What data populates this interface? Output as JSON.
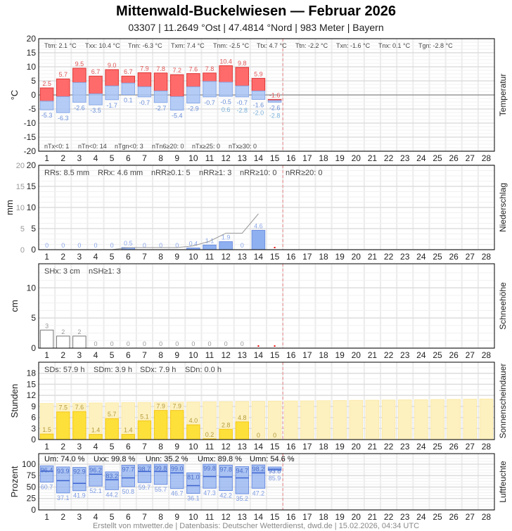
{
  "header": {
    "title": "Mittenwald-Buckelwiesen  —  Februar 2026",
    "subtitle": "03307  |  11.2649 °Ost  |  47.4814 °Nord  |  983 Meter  |  Bayern"
  },
  "footer": "Erstellt von mtwetter.de | Datenbasis: Deutscher Wetterdienst, dwd.de | 15.02.2026, 04:34 UTC",
  "colors": {
    "max": "#ff6b6b",
    "min": "#a8c4f4",
    "precip": "#8fb0f0",
    "sun": "#fde03a",
    "sun_possible": "#fdf1c0",
    "humidity": "#8fb0f0",
    "today_line": "#e88",
    "grid": "#e4e4e4"
  },
  "days": [
    "1",
    "2",
    "3",
    "4",
    "5",
    "6",
    "7",
    "8",
    "9",
    "10",
    "11",
    "12",
    "13",
    "14",
    "15",
    "16",
    "17",
    "18",
    "19",
    "20",
    "21",
    "22",
    "23",
    "24",
    "25",
    "26",
    "27",
    "28"
  ],
  "chart_data": [
    {
      "type": "bar",
      "ylabel": "°C",
      "side_label": "Temperatur",
      "ylim": [
        -20,
        20
      ],
      "yticks": [
        "20",
        "15",
        "10",
        "5",
        "0",
        "-5",
        "-10",
        "-15",
        "-20"
      ],
      "stats_top": [
        "Ttm: 2.1 °C",
        "Txx: 10.4 °C",
        "Tnn: -6.3 °C",
        "Txm: 7.4 °C",
        "Tnm: -2.5 °C",
        "Ttx: 4.7 °C",
        "Ttn: -2.2 °C",
        "Txn: -1.6 °C",
        "Tnx: 0.1 °C",
        "Tgn: -2.8 °C"
      ],
      "stats_bottom": [
        "nTx<0: 1",
        "nTn<0: 14",
        "nTgn<0: 3",
        "nTn6≥20: 0",
        "nTx≥25: 0",
        "nTx≥30: 0"
      ],
      "series": [
        {
          "name": "max",
          "values": [
            2.5,
            5.7,
            9.5,
            6.7,
            9.0,
            6.7,
            7.9,
            7.8,
            7.2,
            7.6,
            7.8,
            10.4,
            9.8,
            5.9,
            -1.6
          ],
          "labels": [
            "2.5",
            "5.7",
            "9.5",
            "6.7",
            "9.0",
            "6.7",
            "7.9",
            "7.8",
            "7.2",
            "7.6",
            "7.8",
            "10.4",
            "9.8",
            "5.9",
            "-1.6"
          ]
        },
        {
          "name": "mean",
          "values": [
            -2.2,
            -0.6,
            4.4,
            0.4,
            3.2,
            4.2,
            2.9,
            1.4,
            -0.6,
            2.9,
            4.8,
            4.5,
            3.2,
            1.4,
            -2.0
          ]
        },
        {
          "name": "min",
          "values": [
            -5.3,
            -6.3,
            -2.6,
            -3.5,
            -1.7,
            0.1,
            -0.7,
            -2.7,
            -5.4,
            -2.9,
            -0.7,
            -0.5,
            -0.7,
            -1.6,
            -2.6
          ],
          "labels": [
            "-5.3",
            "-6.3",
            "-2.6",
            "-3.5",
            "-1.7",
            "0.1",
            "-0.7",
            "-2.7",
            "-5.4",
            "-2.9",
            "-0.7",
            "-0.5",
            "-0.7",
            "-1.6",
            "-2.6"
          ]
        },
        {
          "name": "ground_min",
          "days": [
            12,
            13,
            14,
            15
          ],
          "values": [
            0.6,
            -2.8,
            -2.0,
            -2.8
          ],
          "labels": [
            "0.6",
            "-2.8",
            "-2.0",
            "-2.8"
          ]
        }
      ]
    },
    {
      "type": "bar",
      "ylabel": "mm",
      "side_label": "Niederschlag",
      "ylim": [
        0,
        20
      ],
      "yticks": [
        "20",
        "15",
        "10",
        "5",
        "0"
      ],
      "stats_top": [
        "RRs: 8.5 mm",
        "RRx: 4.6 mm",
        "nRR≥0.1: 5",
        "nRR≥1: 3",
        "nRR≥10: 0",
        "nRR≥20: 0"
      ],
      "values": [
        0,
        0,
        0,
        0,
        0,
        0.5,
        0,
        0,
        0,
        0.4,
        1.1,
        1.9,
        0,
        4.6
      ],
      "labels": [
        "0",
        "0",
        "0",
        "0",
        "0",
        "0.5",
        "0",
        "0",
        "0",
        "0.4",
        "1.1",
        "1.9",
        "0",
        "4.6"
      ],
      "cumulative_line": true,
      "missing_days": [
        15
      ]
    },
    {
      "type": "bar",
      "ylabel": "cm",
      "side_label": "Schneehöhe",
      "ylim": [
        0,
        14
      ],
      "yticks": [
        "10",
        "5",
        "0"
      ],
      "stats_top": [
        "SHx: 3 cm",
        "nSH≥1: 3"
      ],
      "values": [
        3,
        2,
        2,
        0,
        0,
        0,
        0,
        0,
        0,
        0,
        0,
        0,
        0
      ],
      "labels": [
        "3",
        "2",
        "2",
        "0",
        "0",
        "0",
        "0",
        "0",
        "0",
        "0",
        "0",
        "0",
        "0"
      ],
      "missing_days": [
        14,
        15
      ]
    },
    {
      "type": "bar",
      "ylabel": "Stunden",
      "side_label": "Sonnenscheindauer",
      "ylim": [
        0,
        21
      ],
      "yticks": [
        "18",
        "15",
        "12",
        "9",
        "6",
        "3",
        "0"
      ],
      "stats_top": [
        "SDs: 57.9 h",
        "SDm: 3.9 h",
        "SDx: 7.9 h",
        "SDn: 0.0 h"
      ],
      "values": [
        1.5,
        7.5,
        7.6,
        1.4,
        5.7,
        1.4,
        5.1,
        7.9,
        7.9,
        4.0,
        0.2,
        2.8,
        4.8,
        0,
        0
      ],
      "labels": [
        "1.5",
        "7.5",
        "7.6",
        "1.4",
        "5.7",
        "1.4",
        "5.1",
        "7.9",
        "7.9",
        "4.0",
        "0.2",
        "2.8",
        "4.8",
        "0",
        "0"
      ],
      "possible_values": [
        9.8,
        9.84,
        9.88,
        9.93,
        9.97,
        10.02,
        10.06,
        10.1,
        10.15,
        10.19,
        10.24,
        10.28,
        10.33,
        10.37,
        10.42,
        10.46,
        10.5,
        10.55,
        10.59,
        10.64,
        10.68,
        10.72,
        10.77,
        10.81,
        10.86,
        10.9,
        10.95,
        11.0
      ]
    },
    {
      "type": "bar",
      "ylabel": "Prozent",
      "side_label": "Luftfeuchte",
      "ylim": [
        0,
        123
      ],
      "yticks": [
        "100",
        "75",
        "50",
        "25",
        "0"
      ],
      "stats_top": [
        "Um: 74.0 %",
        "Uxx: 99.8 %",
        "Unn: 35.2 %",
        "Umx: 89.8 %",
        "Umn: 54.6 %"
      ],
      "series": [
        {
          "name": "max",
          "values": [
            96.4,
            93.9,
            92.9,
            96.2,
            83.2,
            97.7,
            98.7,
            99.8,
            99.0,
            81.0,
            99.8,
            97.8,
            94.7,
            98.2,
            93.8
          ],
          "labels": [
            "96.4",
            "93.9",
            "92.9",
            "96.2",
            "83.2",
            "97.7",
            "98.7",
            "99.8",
            "99.0",
            "81.0",
            "99.8",
            "97.8",
            "94.7",
            "98.2",
            "93.8"
          ]
        },
        {
          "name": "mean",
          "values": [
            84.6,
            64,
            58,
            78,
            66,
            70,
            84,
            84,
            81,
            53,
            73,
            72,
            70,
            81,
            89
          ]
        },
        {
          "name": "min",
          "values": [
            60.7,
            37.1,
            41.9,
            52.1,
            44.2,
            50.8,
            59.7,
            55.7,
            46.7,
            36.1,
            47.3,
            42.2,
            35.2,
            47.2,
            85.9
          ],
          "labels": [
            "60.7",
            "37.1",
            "41.9",
            "52.1",
            "44.2",
            "50.8",
            "59.7",
            "55.7",
            "46.7",
            "36.1",
            "47.3",
            "42.2",
            "35.2",
            "47.2",
            "85.9"
          ]
        }
      ]
    }
  ]
}
